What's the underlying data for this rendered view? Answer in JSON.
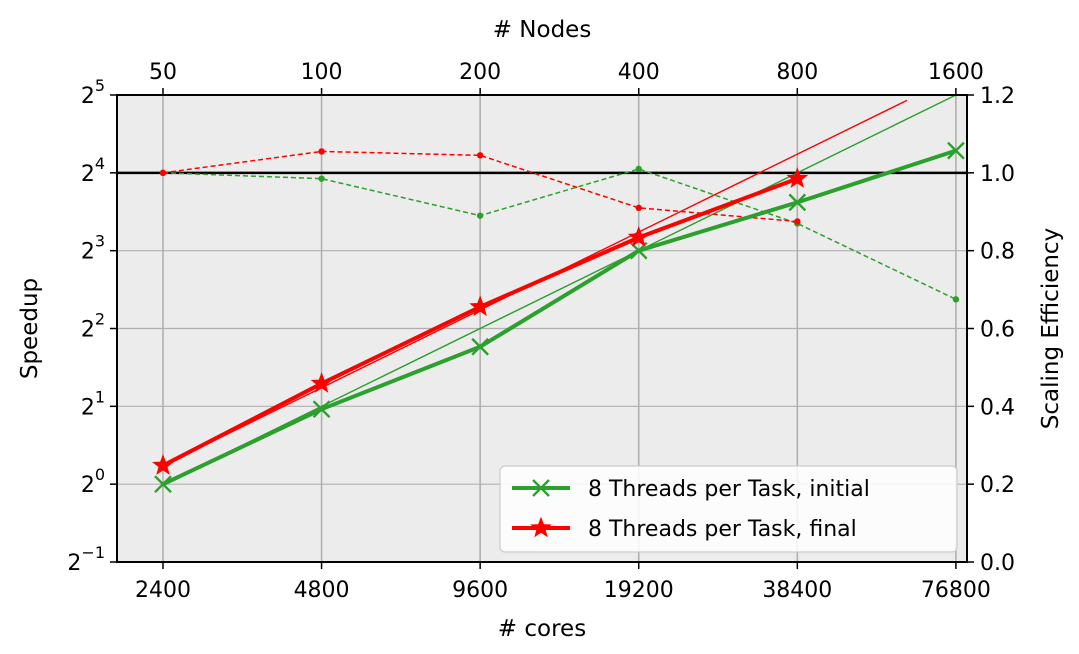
{
  "chart_data": {
    "type": "line",
    "x_bottom": {
      "label": "# cores",
      "scale": "log2",
      "ticks": [
        2400,
        4800,
        9600,
        19200,
        38400,
        76800
      ]
    },
    "x_top": {
      "label": "# Nodes",
      "ticks": [
        50,
        100,
        200,
        400,
        800,
        1600
      ]
    },
    "y_left": {
      "label": "Speedup",
      "scale": "log2",
      "ylim": [
        0.5,
        32
      ],
      "tick_bases": [
        "2",
        "2",
        "2",
        "2",
        "2",
        "2",
        "2"
      ],
      "tick_exponents": [
        "−1",
        "0",
        "1",
        "2",
        "3",
        "4",
        "5"
      ]
    },
    "y_right": {
      "label": "Scaling Efficiency",
      "ylim": [
        0.0,
        1.2
      ],
      "ticks": [
        "0.0",
        "0.2",
        "0.4",
        "0.6",
        "0.8",
        "1.0",
        "1.2"
      ]
    },
    "grid": true,
    "reference_line_efficiency": 1.0,
    "series": [
      {
        "name": "8 Threads per Task, initial",
        "axis": "left",
        "color": "#2ca02c",
        "marker": "x",
        "x": [
          2400,
          4800,
          9600,
          19200,
          38400,
          76800
        ],
        "y": [
          1.0,
          1.95,
          3.4,
          8.0,
          12.3,
          19.5
        ]
      },
      {
        "name": "8 Threads per Task, final",
        "axis": "left",
        "color": "#ff0000",
        "marker": "star",
        "x": [
          2400,
          4800,
          9600,
          19200,
          38400
        ],
        "y": [
          1.18,
          2.45,
          4.85,
          9.0,
          15.2
        ]
      }
    ],
    "efficiency_series": [
      {
        "axis": "right",
        "color": "#2ca02c",
        "x": [
          2400,
          4800,
          9600,
          19200,
          38400,
          76800
        ],
        "y": [
          1.0,
          0.985,
          0.89,
          1.01,
          0.87,
          0.675
        ]
      },
      {
        "axis": "right",
        "color": "#ff0000",
        "x": [
          2400,
          4800,
          9600,
          19200,
          38400
        ],
        "y": [
          1.0,
          1.055,
          1.045,
          0.91,
          0.875
        ]
      }
    ],
    "ideal_lines": [
      {
        "color": "#2ca02c",
        "x": [
          2400,
          76800
        ],
        "y": [
          1.0,
          32.0
        ]
      },
      {
        "color": "#ff0000",
        "x": [
          2400,
          62000
        ],
        "y": [
          1.18,
          30.5
        ]
      }
    ],
    "legend": {
      "placement": "lower-right"
    }
  }
}
